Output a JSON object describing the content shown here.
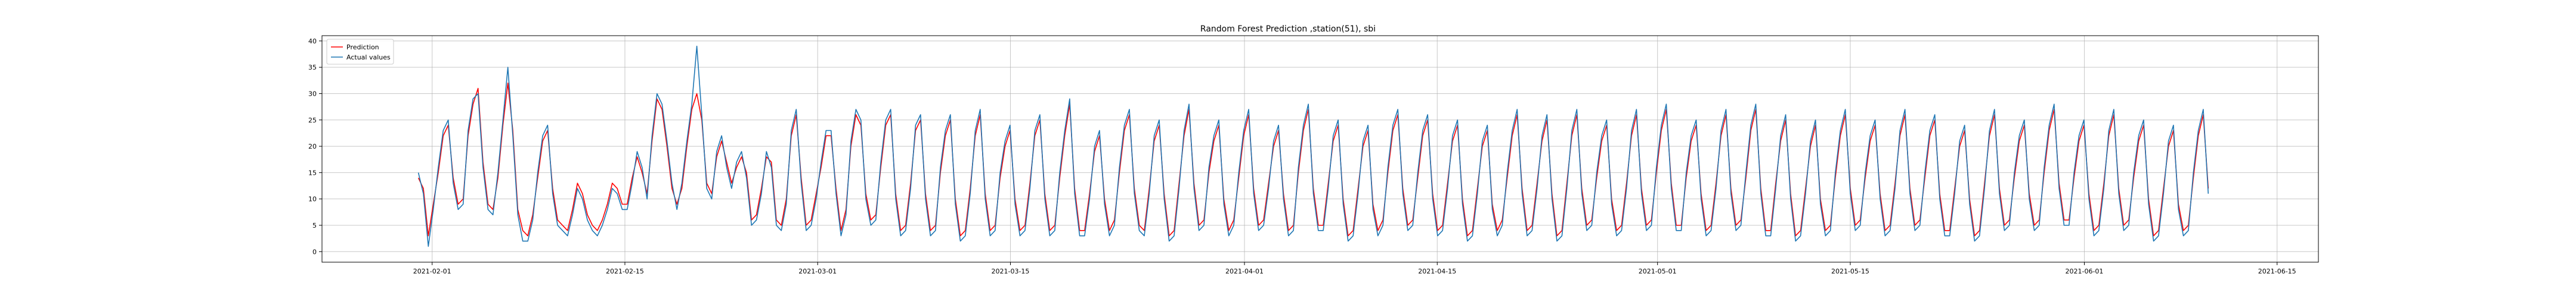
{
  "chart_data": {
    "type": "line",
    "title": "Random Forest Prediction ,station(51), sbi",
    "xlabel": "",
    "ylabel": "",
    "x_ticks": [
      "2021-02-01",
      "2021-02-15",
      "2021-03-01",
      "2021-03-15",
      "2021-04-01",
      "2021-04-15",
      "2021-05-01",
      "2021-05-15",
      "2021-06-01",
      "2021-06-15"
    ],
    "y_ticks": [
      0,
      5,
      10,
      15,
      20,
      25,
      30,
      35,
      40
    ],
    "xlim": [
      "2021-01-24",
      "2021-06-18"
    ],
    "ylim": [
      -2,
      41
    ],
    "grid": true,
    "legend_position": "top-left",
    "date_range": [
      "2021-01-31",
      "2021-06-10"
    ],
    "series": [
      {
        "name": "Prediction",
        "color": "#ff0000",
        "values": [
          14,
          12,
          3,
          9,
          15,
          22,
          24,
          14,
          9,
          10,
          22,
          28,
          31,
          17,
          9,
          8,
          14,
          24,
          32,
          23,
          8,
          4,
          3,
          7,
          14,
          21,
          23,
          12,
          6,
          5,
          4,
          8,
          13,
          11,
          7,
          5,
          4,
          6,
          9,
          13,
          12,
          9,
          9,
          14,
          18,
          15,
          11,
          21,
          29,
          27,
          20,
          12,
          9,
          12,
          20,
          27,
          30,
          25,
          13,
          11,
          18,
          21,
          17,
          13,
          16,
          18,
          15,
          6,
          7,
          12,
          18,
          17,
          6,
          5,
          10,
          22,
          26,
          14,
          5,
          6,
          11,
          16,
          22,
          22,
          12,
          4,
          8,
          20,
          26,
          24,
          11,
          6,
          7,
          16,
          24,
          26,
          11,
          4,
          5,
          13,
          23,
          25,
          11,
          4,
          5,
          15,
          22,
          25,
          10,
          3,
          4,
          12,
          22,
          26,
          11,
          4,
          5,
          14,
          20,
          23,
          10,
          4,
          5,
          13,
          22,
          25,
          11,
          4,
          5,
          14,
          22,
          28,
          12,
          4,
          4,
          11,
          19,
          22,
          10,
          4,
          6,
          15,
          23,
          26,
          12,
          5,
          4,
          12,
          21,
          24,
          11,
          3,
          4,
          13,
          22,
          27,
          13,
          5,
          6,
          15,
          21,
          24,
          10,
          4,
          6,
          14,
          22,
          26,
          12,
          5,
          6,
          13,
          20,
          23,
          11,
          4,
          5,
          15,
          23,
          27,
          12,
          5,
          5,
          13,
          21,
          24,
          10,
          3,
          4,
          12,
          20,
          23,
          9,
          4,
          6,
          15,
          23,
          26,
          12,
          5,
          6,
          14,
          22,
          25,
          11,
          4,
          5,
          13,
          21,
          24,
          10,
          3,
          4,
          12,
          20,
          23,
          9,
          4,
          6,
          14,
          22,
          26,
          12,
          4,
          5,
          13,
          21,
          25,
          11,
          3,
          4,
          13,
          22,
          26,
          12,
          5,
          6,
          14,
          21,
          24,
          10,
          4,
          5,
          13,
          22,
          26,
          12,
          5,
          6,
          15,
          23,
          27,
          13,
          5,
          5,
          14,
          21,
          24,
          11,
          4,
          5,
          13,
          22,
          26,
          12,
          5,
          6,
          14,
          23,
          27,
          12,
          4,
          4,
          13,
          21,
          25,
          11,
          3,
          4,
          12,
          20,
          24,
          10,
          4,
          5,
          14,
          22,
          26,
          12,
          5,
          6,
          14,
          21,
          24,
          11,
          4,
          5,
          13,
          22,
          26,
          12,
          5,
          6,
          14,
          22,
          25,
          11,
          4,
          4,
          12,
          20,
          23,
          10,
          3,
          4,
          13,
          22,
          26,
          12,
          5,
          6,
          14,
          21,
          24,
          11,
          5,
          6,
          15,
          23,
          27,
          13,
          6,
          6,
          14,
          21,
          24,
          11,
          4,
          5,
          13,
          22,
          26,
          12,
          5,
          6,
          14,
          21,
          24,
          10,
          3,
          4,
          12,
          20,
          23,
          9,
          4,
          5,
          14,
          22,
          26,
          12
        ]
      },
      {
        "name": "Actual values",
        "color": "#1f77b4",
        "values": [
          15,
          11,
          1,
          8,
          16,
          23,
          25,
          13,
          8,
          9,
          23,
          29,
          30,
          16,
          8,
          7,
          15,
          25,
          35,
          22,
          7,
          2,
          2,
          6,
          15,
          22,
          24,
          11,
          5,
          4,
          3,
          7,
          12,
          10,
          6,
          4,
          3,
          5,
          8,
          12,
          11,
          8,
          8,
          13,
          19,
          16,
          10,
          22,
          30,
          28,
          21,
          13,
          8,
          13,
          21,
          28,
          39,
          26,
          12,
          10,
          19,
          22,
          16,
          12,
          17,
          19,
          14,
          5,
          6,
          11,
          19,
          16,
          5,
          4,
          9,
          23,
          27,
          13,
          4,
          5,
          10,
          17,
          23,
          23,
          11,
          3,
          7,
          21,
          27,
          25,
          10,
          5,
          6,
          17,
          25,
          27,
          10,
          3,
          4,
          12,
          24,
          26,
          10,
          3,
          4,
          16,
          23,
          26,
          9,
          2,
          3,
          11,
          23,
          27,
          10,
          3,
          4,
          15,
          21,
          24,
          9,
          3,
          4,
          12,
          23,
          26,
          10,
          3,
          4,
          15,
          23,
          29,
          11,
          3,
          3,
          10,
          20,
          23,
          9,
          3,
          5,
          16,
          24,
          27,
          11,
          4,
          3,
          11,
          22,
          25,
          10,
          2,
          3,
          12,
          23,
          28,
          12,
          4,
          5,
          16,
          22,
          25,
          9,
          3,
          5,
          15,
          23,
          27,
          11,
          4,
          5,
          12,
          21,
          24,
          10,
          3,
          4,
          16,
          24,
          28,
          11,
          4,
          4,
          12,
          22,
          25,
          9,
          2,
          3,
          11,
          21,
          24,
          8,
          3,
          5,
          16,
          24,
          27,
          11,
          4,
          5,
          15,
          23,
          26,
          10,
          3,
          4,
          12,
          22,
          25,
          9,
          2,
          3,
          11,
          21,
          24,
          8,
          3,
          5,
          15,
          23,
          27,
          11,
          3,
          4,
          12,
          22,
          26,
          10,
          2,
          3,
          12,
          23,
          27,
          11,
          4,
          5,
          15,
          22,
          25,
          9,
          3,
          4,
          12,
          23,
          27,
          11,
          4,
          5,
          16,
          24,
          28,
          12,
          4,
          4,
          15,
          22,
          25,
          10,
          3,
          4,
          12,
          23,
          27,
          11,
          4,
          5,
          15,
          24,
          28,
          11,
          3,
          3,
          12,
          22,
          26,
          10,
          2,
          3,
          11,
          21,
          25,
          9,
          3,
          4,
          15,
          23,
          27,
          11,
          4,
          5,
          15,
          22,
          25,
          10,
          3,
          4,
          12,
          23,
          27,
          11,
          4,
          5,
          15,
          23,
          26,
          10,
          3,
          3,
          11,
          21,
          24,
          9,
          2,
          3,
          12,
          23,
          27,
          11,
          4,
          5,
          15,
          22,
          25,
          10,
          4,
          5,
          16,
          24,
          28,
          12,
          5,
          5,
          15,
          22,
          25,
          10,
          3,
          4,
          12,
          23,
          27,
          11,
          4,
          5,
          15,
          22,
          25,
          9,
          2,
          3,
          11,
          21,
          24,
          8,
          3,
          4,
          15,
          23,
          27,
          11
        ]
      }
    ]
  }
}
